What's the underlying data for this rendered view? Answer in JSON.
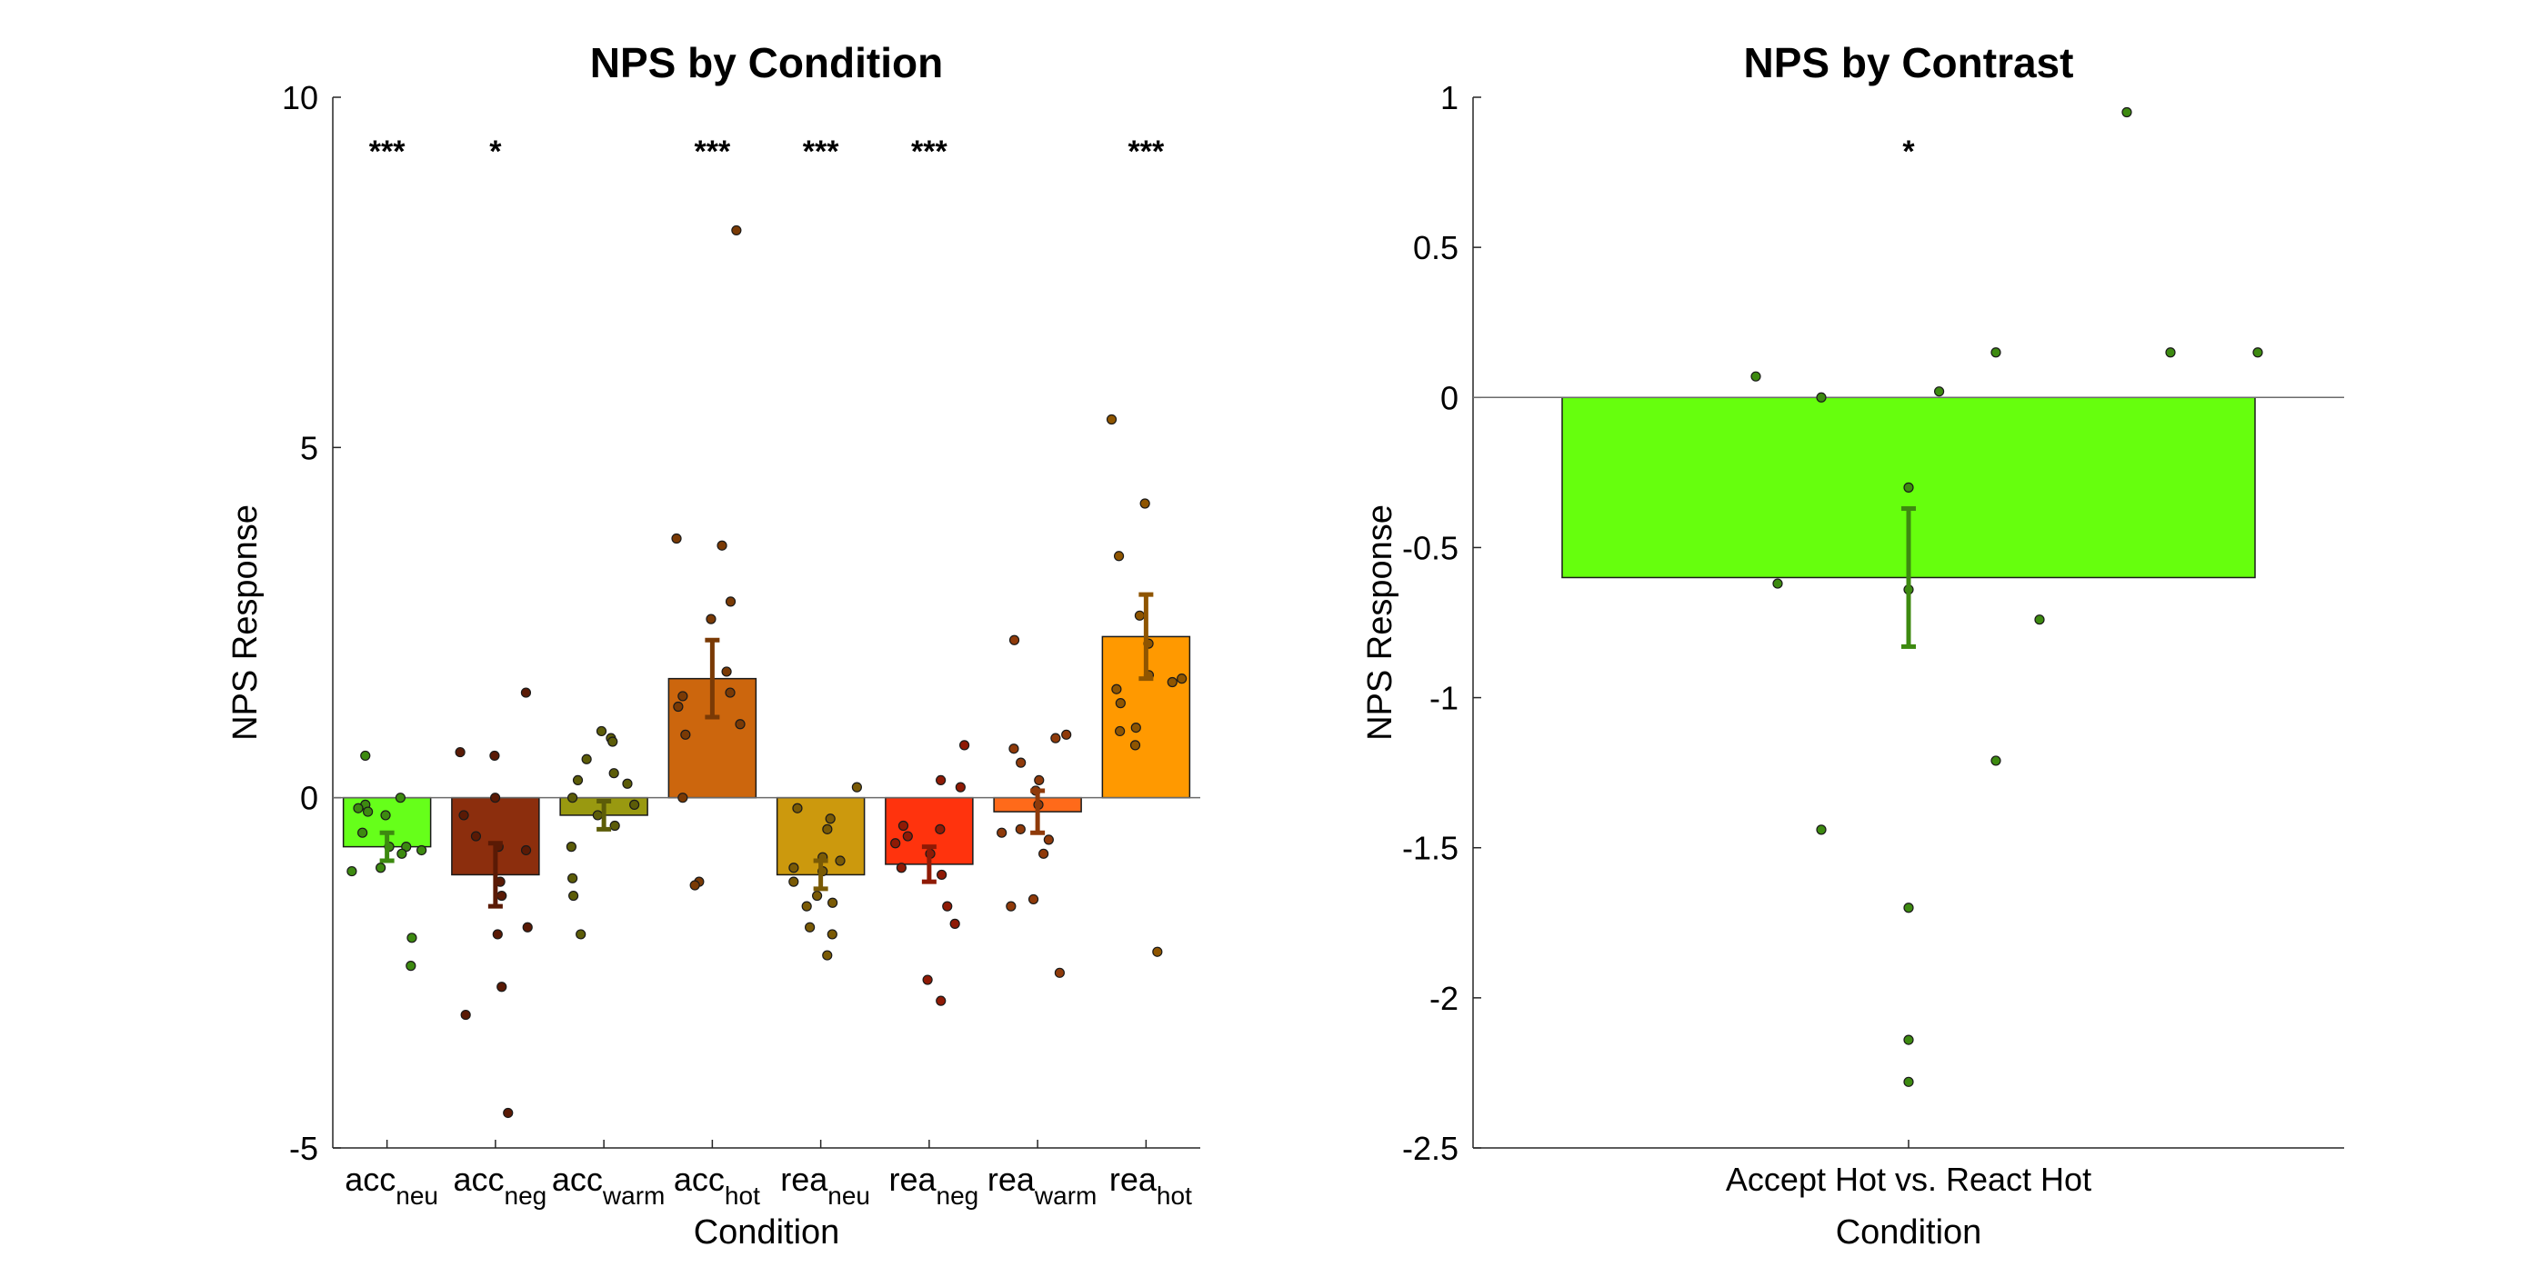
{
  "chart_data": [
    {
      "type": "bar",
      "title": "NPS by Condition",
      "xlabel": "Condition",
      "ylabel": "NPS Response",
      "ylim": [
        -5,
        10
      ],
      "yticks": [
        "-5",
        "0",
        "5",
        "10"
      ],
      "grid": false,
      "legend": "none",
      "categories": [
        {
          "main": "acc",
          "sub": "neu"
        },
        {
          "main": "acc",
          "sub": "neg"
        },
        {
          "main": "acc",
          "sub": "warm"
        },
        {
          "main": "acc",
          "sub": "hot"
        },
        {
          "main": "rea",
          "sub": "neu"
        },
        {
          "main": "rea",
          "sub": "neg"
        },
        {
          "main": "rea",
          "sub": "warm"
        },
        {
          "main": "rea",
          "sub": "hot"
        }
      ],
      "values": [
        -0.7,
        -1.1,
        -0.25,
        1.7,
        -1.1,
        -0.95,
        -0.2,
        2.3
      ],
      "errors": [
        0.2,
        0.45,
        0.2,
        0.55,
        0.2,
        0.25,
        0.3,
        0.6
      ],
      "colors": [
        "#66ff1a",
        "#8c2e0d",
        "#999910",
        "#cc660d",
        "#cc990d",
        "#ff330d",
        "#ff6a1a",
        "#ff9900"
      ],
      "error_colors": [
        "#3d8a10",
        "#5a1a05",
        "#5c5c08",
        "#7a3a05",
        "#7a5a05",
        "#8f1a05",
        "#8f3a0a",
        "#8f5500"
      ],
      "significance": [
        "***",
        "*",
        "",
        "***",
        "***",
        "***",
        "",
        "***"
      ],
      "points": [
        [
          0.6,
          0.0,
          -0.1,
          -0.15,
          -0.2,
          -0.25,
          -0.5,
          -0.7,
          -0.7,
          -0.75,
          -0.8,
          -1.0,
          -1.05,
          -2.0,
          -2.4
        ],
        [
          1.5,
          0.65,
          0.6,
          0.0,
          -0.25,
          -0.55,
          -0.7,
          -0.75,
          -1.2,
          -1.4,
          -1.85,
          -1.95,
          -2.7,
          -3.1,
          -4.5
        ],
        [
          0.95,
          0.85,
          0.8,
          0.55,
          0.35,
          0.25,
          0.2,
          0.0,
          -0.1,
          -0.25,
          -0.4,
          -0.7,
          -1.15,
          -1.4,
          -1.95
        ],
        [
          8.1,
          3.7,
          3.6,
          2.8,
          2.55,
          1.8,
          1.5,
          1.45,
          1.3,
          1.05,
          0.9,
          0.0,
          -1.2,
          -1.25
        ],
        [
          0.15,
          -0.15,
          -0.3,
          -0.45,
          -0.85,
          -0.9,
          -1.0,
          -1.05,
          -1.2,
          -1.4,
          -1.5,
          -1.55,
          -1.85,
          -1.95,
          -2.25
        ],
        [
          0.75,
          0.25,
          0.15,
          -0.4,
          -0.45,
          -0.55,
          -0.65,
          -0.8,
          -1.0,
          -1.1,
          -1.55,
          -1.8,
          -2.6,
          -2.9
        ],
        [
          2.25,
          0.9,
          0.85,
          0.7,
          0.5,
          0.25,
          0.1,
          -0.1,
          -0.45,
          -0.5,
          -0.6,
          -0.8,
          -1.45,
          -1.55,
          -2.5
        ],
        [
          5.4,
          4.2,
          3.45,
          2.6,
          2.2,
          1.75,
          1.7,
          1.65,
          1.55,
          1.35,
          1.0,
          0.95,
          0.75,
          -2.2
        ]
      ]
    },
    {
      "type": "bar",
      "title": "NPS by Contrast",
      "xlabel": "Condition",
      "ylabel": "NPS Response",
      "ylim": [
        -2.5,
        1
      ],
      "yticks": [
        "-2.5",
        "-2",
        "-1.5",
        "-1",
        "-0.5",
        "0",
        "0.5",
        "1"
      ],
      "grid": false,
      "legend": "none",
      "categories": [
        "Accept Hot vs. React Hot"
      ],
      "values": [
        -0.6
      ],
      "errors": [
        0.23
      ],
      "colors": [
        "#66ff0d"
      ],
      "error_colors": [
        "#3d8a10"
      ],
      "significance": [
        "*"
      ],
      "points": [
        [
          0.95,
          0.15,
          0.15,
          0.15,
          0.07,
          0.02,
          0.0,
          -0.3,
          -0.62,
          -0.64,
          -0.74,
          -1.21,
          -1.44,
          -1.7,
          -2.14,
          -2.28
        ]
      ]
    }
  ]
}
